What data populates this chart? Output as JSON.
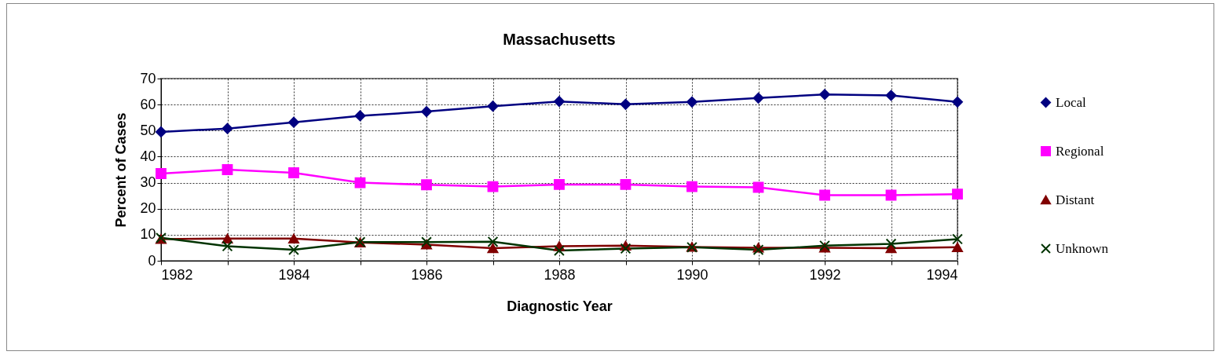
{
  "chart_data": {
    "type": "line",
    "title": "Massachusetts",
    "xlabel": "Diagnostic Year",
    "ylabel": "Percent of Cases",
    "x": [
      1982,
      1983,
      1984,
      1985,
      1986,
      1987,
      1988,
      1989,
      1990,
      1991,
      1992,
      1993,
      1994
    ],
    "xlim": [
      1982,
      1994
    ],
    "xticks": [
      1982,
      {
        "value": 1983,
        "label": null
      },
      1984,
      {
        "value": 1985,
        "label": null
      },
      1986,
      {
        "value": 1987,
        "label": null
      },
      1988,
      {
        "value": 1989,
        "label": null
      },
      1990,
      {
        "value": 1991,
        "label": null
      },
      1992,
      {
        "value": 1993,
        "label": null
      },
      1994
    ],
    "ylim": [
      0,
      70
    ],
    "yticks": [
      0,
      10,
      20,
      30,
      40,
      50,
      60,
      70
    ],
    "grid": true,
    "legend": "right",
    "line_style": "solid",
    "series": [
      {
        "name": "Local",
        "color": "#000080",
        "marker": "diamond",
        "values": [
          49.5,
          50.8,
          53.2,
          55.7,
          57.3,
          59.4,
          61.2,
          60.1,
          61,
          62.5,
          63.9,
          63.5,
          61
        ]
      },
      {
        "name": "Regional",
        "color": "#ff00ff",
        "marker": "square",
        "values": [
          33.5,
          35,
          33.8,
          30,
          29.2,
          28.5,
          29.3,
          29.3,
          28.5,
          28.2,
          25.2,
          25.2,
          25.6
        ]
      },
      {
        "name": "Distant",
        "color": "#800000",
        "marker": "triangle",
        "values": [
          8.3,
          8.5,
          8.5,
          7,
          6.2,
          4.8,
          5.6,
          5.8,
          5.3,
          5,
          5,
          4.8,
          5.2
        ]
      },
      {
        "name": "Unknown",
        "color": "#003300",
        "marker": "cross",
        "values": [
          8.8,
          5.6,
          4.2,
          7.2,
          7.2,
          7.3,
          3.9,
          4.7,
          5.2,
          4.2,
          5.8,
          6.5,
          8.3
        ]
      }
    ]
  }
}
